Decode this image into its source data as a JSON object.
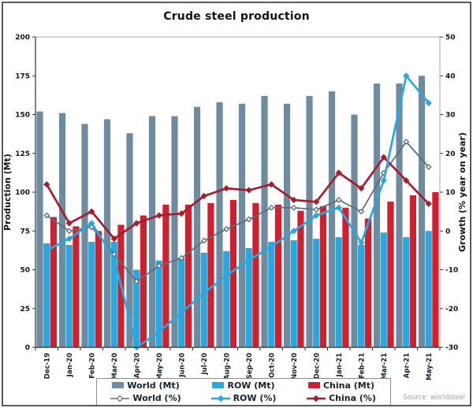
{
  "chart_data": {
    "type": "bar-line-combo",
    "title": "Crude steel production",
    "source": "Source: worldsteel",
    "categories": [
      "Dec-19",
      "Jan-20",
      "Feb-20",
      "Mar-20",
      "Apr-20",
      "May-20",
      "Jun-20",
      "Jul-20",
      "Aug-20",
      "Sep-20",
      "Oct-20",
      "Nov-20",
      "Dec-20",
      "Jan-21",
      "Feb-21",
      "Mar-21",
      "Apr-21",
      "May-21"
    ],
    "left_axis": {
      "label": "Production (Mt)",
      "min": 0,
      "max": 200,
      "step": 25
    },
    "right_axis": {
      "label": "Growth (% year on year)",
      "min": -30,
      "max": 50,
      "step": 10
    },
    "bar_series": [
      {
        "name": "World (Mt)",
        "color": "#6f8ba0",
        "values": [
          152,
          151,
          144,
          147,
          138,
          149,
          149,
          155,
          158,
          157,
          162,
          157,
          162,
          165,
          150,
          170,
          170,
          175
        ]
      },
      {
        "name": "ROW (Mt)",
        "color": "#2aa7dc",
        "values": [
          67,
          66,
          68,
          68,
          50,
          56,
          57,
          61,
          62,
          64,
          68,
          69,
          70,
          71,
          66,
          74,
          71,
          75
        ]
      },
      {
        "name": "China (Mt)",
        "color": "#ce202f",
        "values": [
          84,
          78,
          75,
          79,
          85,
          92,
          92,
          93,
          95,
          93,
          92,
          88,
          91,
          90,
          83,
          94,
          98,
          100
        ]
      }
    ],
    "line_series": [
      {
        "name": "World (%)",
        "color": "#5b6c79",
        "marker": "open-diamond",
        "values": [
          4,
          0,
          1,
          -6,
          -13,
          -9,
          -7,
          -2.5,
          0.5,
          3,
          6,
          6,
          5.5,
          8,
          5,
          15,
          23,
          16.5
        ]
      },
      {
        "name": "China (%)",
        "color": "#a51e2f",
        "marker": "diamond",
        "values": [
          12,
          2,
          5,
          -2,
          2,
          4,
          4.5,
          9,
          11,
          10.5,
          12,
          8,
          7.5,
          15,
          11,
          19,
          13,
          7
        ]
      },
      {
        "name": "ROW (%)",
        "color": "#2aa7dc",
        "marker": "diamond",
        "values": [
          -5,
          -2,
          2,
          -7,
          -30,
          -26,
          -21,
          -16,
          -11.5,
          -7.5,
          -4,
          0,
          4,
          6,
          -3,
          13,
          40,
          33
        ]
      }
    ],
    "legend_rows": [
      [
        "World (Mt)",
        "ROW (Mt)",
        "China (Mt)"
      ],
      [
        "World (%)",
        "ROW (%)",
        "China (%)"
      ]
    ]
  }
}
